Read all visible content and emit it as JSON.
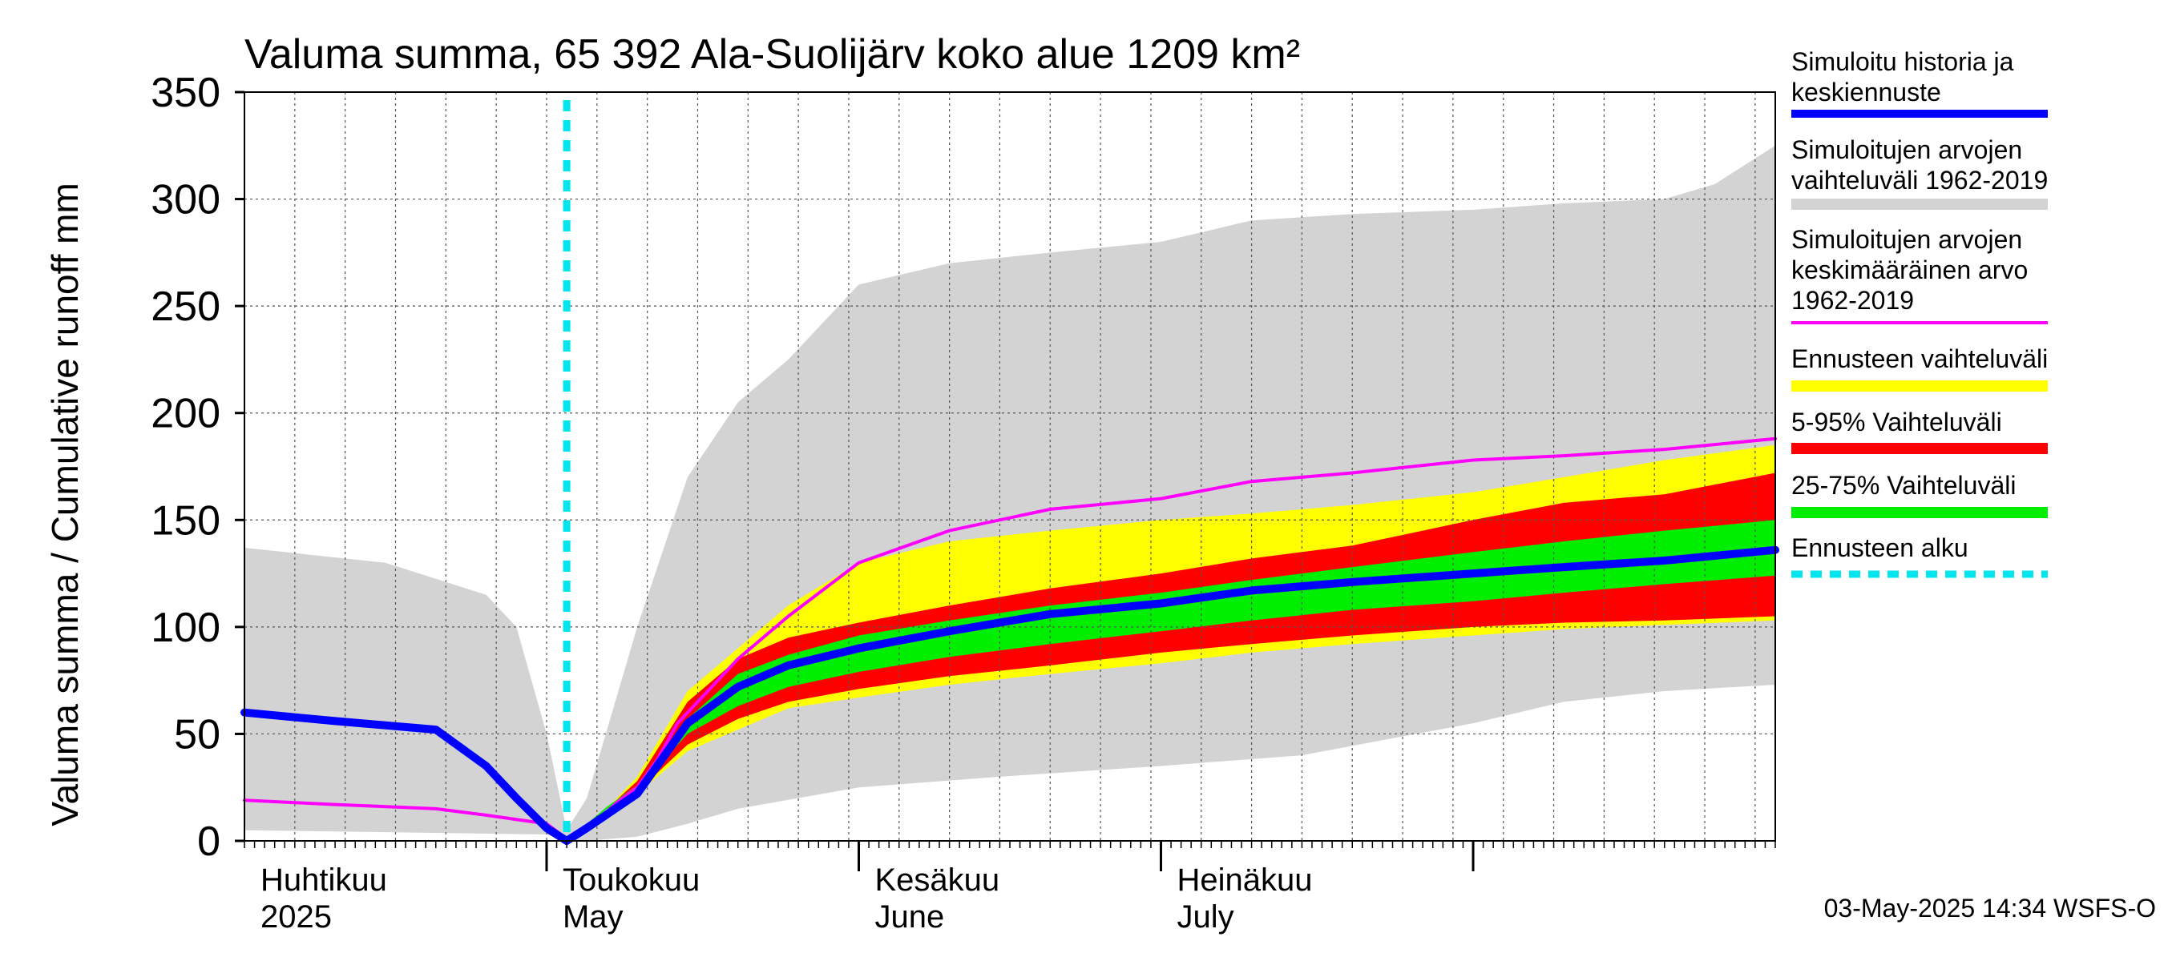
{
  "chart_data": {
    "type": "area",
    "title": "Valuma summa, 65 392 Ala-Suolijärv koko alue 1209 km²",
    "ylabel": "Valuma summa / Cumulative runoff    mm",
    "ylim": [
      0,
      350
    ],
    "yticks": [
      "0",
      "50",
      "100",
      "150",
      "200",
      "250",
      "300",
      "350"
    ],
    "x_range": [
      "2025-04-01",
      "2025-08-31"
    ],
    "forecast_start": "2025-05-03",
    "grid": true,
    "legend_position": "right",
    "month_labels": [
      {
        "date": "2025-04-01",
        "fi": "Huhtikuu",
        "en": "2025"
      },
      {
        "date": "2025-05-01",
        "fi": "Toukokuu",
        "en": "May"
      },
      {
        "date": "2025-06-01",
        "fi": "Kesäkuu",
        "en": "June"
      },
      {
        "date": "2025-07-01",
        "fi": "Heinäkuu",
        "en": "July"
      }
    ],
    "legend": [
      {
        "key": "sim",
        "lines": [
          "Simuloitu historia ja",
          "keskiennuste"
        ],
        "color": "#0000ff",
        "style": "line"
      },
      {
        "key": "range",
        "lines": [
          "Simuloitujen arvojen",
          "vaihteluväli 1962-2019"
        ],
        "color": "#d3d3d3",
        "style": "band"
      },
      {
        "key": "mean",
        "lines": [
          "Simuloitujen arvojen",
          "keskimääräinen arvo",
          "   1962-2019"
        ],
        "color": "#ff00ff",
        "style": "thin"
      },
      {
        "key": "fc",
        "lines": [
          "Ennusteen vaihteluväli"
        ],
        "color": "#ffff00",
        "style": "band"
      },
      {
        "key": "p595",
        "lines": [
          "5-95% Vaihteluväli"
        ],
        "color": "#ff0000",
        "style": "band"
      },
      {
        "key": "p2575",
        "lines": [
          "25-75% Vaihteluväli"
        ],
        "color": "#00ee00",
        "style": "band"
      },
      {
        "key": "start",
        "lines": [
          "Ennusteen alku"
        ],
        "color": "#00e5ee",
        "style": "dashed"
      }
    ],
    "series": [
      {
        "key": "range_upper",
        "color": "#d3d3d3",
        "x": [
          "2025-04-01",
          "2025-04-15",
          "2025-04-25",
          "2025-04-28",
          "2025-05-01",
          "2025-05-03",
          "2025-05-05",
          "2025-05-10",
          "2025-05-15",
          "2025-05-20",
          "2025-05-25",
          "2025-06-01",
          "2025-06-10",
          "2025-06-20",
          "2025-07-01",
          "2025-07-10",
          "2025-07-20",
          "2025-08-01",
          "2025-08-10",
          "2025-08-20",
          "2025-08-25",
          "2025-08-31"
        ],
        "values": [
          137,
          130,
          115,
          100,
          50,
          5,
          20,
          100,
          170,
          205,
          225,
          260,
          270,
          275,
          280,
          290,
          293,
          295,
          298,
          300,
          307,
          325
        ]
      },
      {
        "key": "range_lower",
        "color": "#d3d3d3",
        "x": [
          "2025-04-01",
          "2025-05-01",
          "2025-05-03",
          "2025-05-05",
          "2025-05-10",
          "2025-05-15",
          "2025-05-20",
          "2025-06-01",
          "2025-06-15",
          "2025-07-01",
          "2025-07-15",
          "2025-08-01",
          "2025-08-10",
          "2025-08-20",
          "2025-08-31"
        ],
        "values": [
          5,
          3,
          0,
          0,
          2,
          8,
          15,
          25,
          30,
          35,
          40,
          55,
          65,
          70,
          73
        ]
      },
      {
        "key": "fc_upper",
        "color": "#ffff00",
        "x": [
          "2025-05-03",
          "2025-05-07",
          "2025-05-10",
          "2025-05-15",
          "2025-05-20",
          "2025-05-25",
          "2025-06-01",
          "2025-06-10",
          "2025-06-20",
          "2025-07-01",
          "2025-07-10",
          "2025-07-20",
          "2025-08-01",
          "2025-08-10",
          "2025-08-20",
          "2025-08-31"
        ],
        "values": [
          0,
          15,
          30,
          70,
          90,
          110,
          130,
          140,
          145,
          150,
          153,
          157,
          163,
          170,
          178,
          185
        ]
      },
      {
        "key": "fc_lower",
        "color": "#ffff00",
        "x": [
          "2025-05-03",
          "2025-05-07",
          "2025-05-10",
          "2025-05-15",
          "2025-05-20",
          "2025-05-25",
          "2025-06-01",
          "2025-06-10",
          "2025-06-20",
          "2025-07-01",
          "2025-07-10",
          "2025-07-20",
          "2025-08-01",
          "2025-08-10",
          "2025-08-20",
          "2025-08-31"
        ],
        "values": [
          0,
          15,
          22,
          42,
          52,
          62,
          67,
          73,
          78,
          83,
          88,
          92,
          96,
          99,
          101,
          103
        ]
      },
      {
        "key": "p95",
        "color": "#ff0000",
        "x": [
          "2025-05-03",
          "2025-05-07",
          "2025-05-10",
          "2025-05-15",
          "2025-05-20",
          "2025-05-25",
          "2025-06-01",
          "2025-06-10",
          "2025-06-20",
          "2025-07-01",
          "2025-07-10",
          "2025-07-20",
          "2025-08-01",
          "2025-08-10",
          "2025-08-20",
          "2025-08-31"
        ],
        "values": [
          0,
          15,
          28,
          65,
          85,
          95,
          102,
          110,
          118,
          125,
          132,
          138,
          150,
          158,
          162,
          172
        ]
      },
      {
        "key": "p05",
        "color": "#ff0000",
        "x": [
          "2025-05-03",
          "2025-05-07",
          "2025-05-10",
          "2025-05-15",
          "2025-05-20",
          "2025-05-25",
          "2025-06-01",
          "2025-06-10",
          "2025-06-20",
          "2025-07-01",
          "2025-07-10",
          "2025-07-20",
          "2025-08-01",
          "2025-08-10",
          "2025-08-20",
          "2025-08-31"
        ],
        "values": [
          0,
          15,
          23,
          45,
          57,
          65,
          71,
          77,
          82,
          88,
          92,
          96,
          100,
          102,
          103,
          105
        ]
      },
      {
        "key": "p75",
        "color": "#00ee00",
        "x": [
          "2025-05-03",
          "2025-05-07",
          "2025-05-10",
          "2025-05-15",
          "2025-05-20",
          "2025-05-25",
          "2025-06-01",
          "2025-06-10",
          "2025-06-20",
          "2025-07-01",
          "2025-07-10",
          "2025-07-20",
          "2025-08-01",
          "2025-08-10",
          "2025-08-20",
          "2025-08-31"
        ],
        "values": [
          0,
          16,
          26,
          57,
          78,
          87,
          96,
          103,
          110,
          116,
          122,
          128,
          135,
          140,
          145,
          150
        ]
      },
      {
        "key": "p25",
        "color": "#00ee00",
        "x": [
          "2025-05-03",
          "2025-05-07",
          "2025-05-10",
          "2025-05-15",
          "2025-05-20",
          "2025-05-25",
          "2025-06-01",
          "2025-06-10",
          "2025-06-20",
          "2025-07-01",
          "2025-07-10",
          "2025-07-20",
          "2025-08-01",
          "2025-08-10",
          "2025-08-20",
          "2025-08-31"
        ],
        "values": [
          0,
          15,
          24,
          50,
          63,
          72,
          79,
          86,
          92,
          98,
          103,
          108,
          112,
          116,
          120,
          124
        ]
      },
      {
        "key": "mean",
        "color": "#ff00ff",
        "x": [
          "2025-04-01",
          "2025-04-10",
          "2025-04-20",
          "2025-04-25",
          "2025-05-01",
          "2025-05-03",
          "2025-05-05",
          "2025-05-08",
          "2025-05-10",
          "2025-05-12",
          "2025-05-14",
          "2025-05-16",
          "2025-05-20",
          "2025-05-25",
          "2025-06-01",
          "2025-06-10",
          "2025-06-20",
          "2025-07-01",
          "2025-07-10",
          "2025-07-20",
          "2025-08-01",
          "2025-08-10",
          "2025-08-20",
          "2025-08-31"
        ],
        "values": [
          19,
          17,
          15,
          12,
          8,
          1,
          5,
          18,
          25,
          38,
          55,
          65,
          85,
          105,
          130,
          145,
          155,
          160,
          168,
          172,
          178,
          180,
          183,
          188
        ]
      },
      {
        "key": "sim",
        "color": "#0000ff",
        "x": [
          "2025-04-01",
          "2025-04-10",
          "2025-04-20",
          "2025-04-25",
          "2025-04-28",
          "2025-05-01",
          "2025-05-03",
          "2025-05-05",
          "2025-05-10",
          "2025-05-15",
          "2025-05-20",
          "2025-05-25",
          "2025-06-01",
          "2025-06-10",
          "2025-06-20",
          "2025-07-01",
          "2025-07-10",
          "2025-07-20",
          "2025-08-01",
          "2025-08-10",
          "2025-08-20",
          "2025-08-31"
        ],
        "values": [
          60,
          56,
          52,
          35,
          20,
          6,
          0,
          6,
          22,
          55,
          72,
          82,
          90,
          98,
          106,
          111,
          117,
          121,
          125,
          128,
          131,
          136
        ]
      }
    ]
  },
  "footer": {
    "timestamp": "03-May-2025 14:34 WSFS-O"
  }
}
